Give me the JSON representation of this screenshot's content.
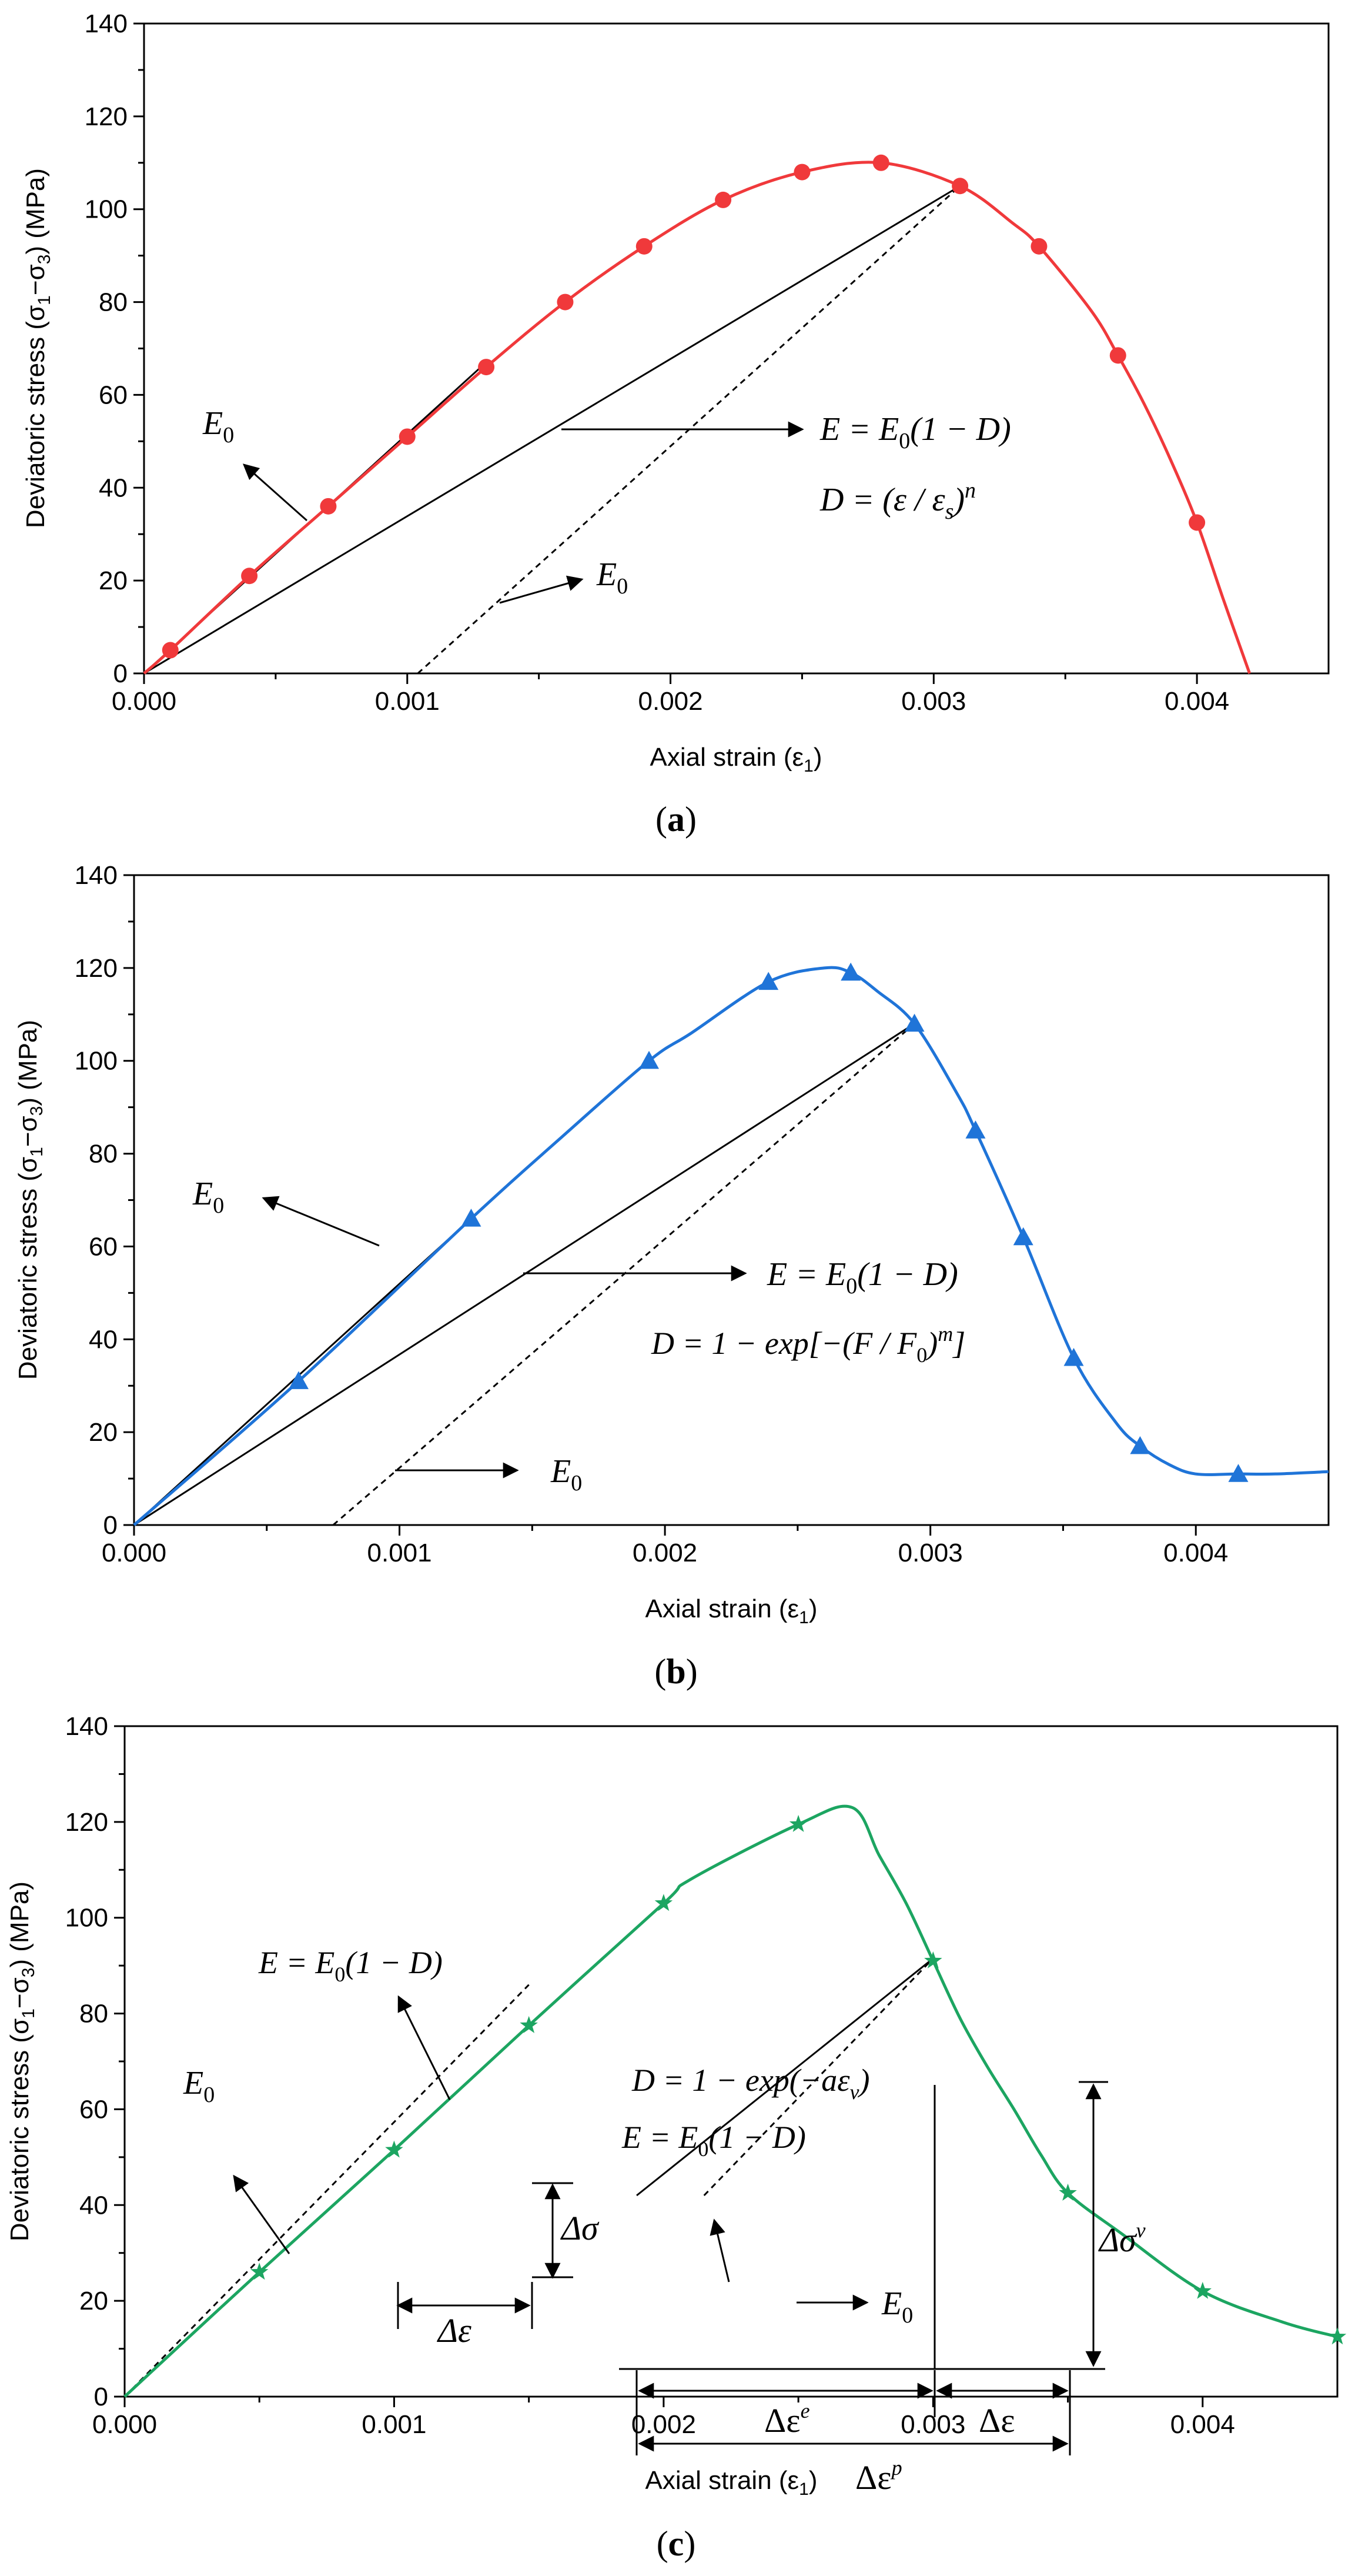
{
  "figure": {
    "panels": [
      {
        "id": "a",
        "label_prefix": "(",
        "label": "a",
        "label_suffix": ")",
        "color": "#F0393B",
        "marker": "circle",
        "annotations": {
          "e0_left": "E",
          "e0_left_sub": "0",
          "e0_bottom": "E",
          "e0_bottom_sub": "0",
          "eq_e_lhs": "E = E",
          "eq_e_sub": "0",
          "eq_e_rhs": "(1 − D)",
          "eq_d": "D = (ε / ε",
          "eq_d_sub": "s",
          "eq_d_close": ")",
          "eq_d_sup": "n"
        }
      },
      {
        "id": "b",
        "label_prefix": "(",
        "label": "b",
        "label_suffix": ")",
        "color": "#1F74D8",
        "marker": "triangle",
        "annotations": {
          "e0_left": "E",
          "e0_left_sub": "0",
          "e0_bottom": "E",
          "e0_bottom_sub": "0",
          "eq_e_lhs": "E = E",
          "eq_e_sub": "0",
          "eq_e_rhs": "(1 − D)",
          "eq_d": "D = 1 − exp[−(F / F",
          "eq_d_sub": "0",
          "eq_d_close": ")",
          "eq_d_sup": "m",
          "eq_d_end": "]"
        }
      },
      {
        "id": "c",
        "label_prefix": "(",
        "label": "c",
        "label_suffix": ")",
        "color": "#1CA561",
        "marker": "star",
        "annotations": {
          "eq_e_left_lhs": "E = E",
          "eq_e_left_sub": "0",
          "eq_e_left_rhs": "(1 − D)",
          "e0_left": "E",
          "e0_left_sub": "0",
          "d_sigma": "Δσ",
          "d_eps_left": "Δε",
          "eq_d": "D = 1 − exp(−aε",
          "eq_d_sub": "v",
          "eq_d_close": ")",
          "eq_e_right_lhs": "E = E",
          "eq_e_right_sub": "0",
          "eq_e_right_rhs": "(1 − D)",
          "e0_right": "E",
          "e0_right_sub": "0",
          "d_sigma_v": "Δσ",
          "d_sigma_v_sup": "v",
          "d_eps_e": "Δε",
          "d_eps_e_sup": "e",
          "d_eps_right": "Δε",
          "d_eps_p": "Δε",
          "d_eps_p_sup": "p"
        }
      }
    ]
  },
  "chart_data": [
    {
      "type": "line",
      "panel": "a",
      "title": "",
      "xlabel": "Axial strain (ε",
      "xlabel_sub": "1",
      "xlabel_close": ")",
      "ylabel": "Deviatoric stress (σ",
      "ylabel_sub1": "1",
      "ylabel_mid": "−σ",
      "ylabel_sub3": "3",
      "ylabel_close": ") (MPa)",
      "xlim": [
        0,
        0.0045
      ],
      "ylim": [
        0,
        140
      ],
      "xticks": [
        0.0,
        0.001,
        0.002,
        0.003,
        0.004
      ],
      "xtick_labels": [
        "0.000",
        "0.001",
        "0.002",
        "0.003",
        "0.004"
      ],
      "yticks": [
        0,
        20,
        40,
        60,
        80,
        100,
        120,
        140
      ],
      "ytick_labels": [
        "0",
        "20",
        "40",
        "60",
        "80",
        "100",
        "120",
        "140"
      ],
      "series": [
        {
          "name": "curve",
          "x": [
            0.0,
            0.0001,
            0.0004,
            0.0007,
            0.001,
            0.0013,
            0.0016,
            0.0019,
            0.0022,
            0.0025,
            0.0028,
            0.0031,
            0.0033,
            0.0034,
            0.0036,
            0.0037,
            0.0038,
            0.0039,
            0.004,
            0.0041,
            0.0042
          ],
          "y": [
            0,
            5,
            21,
            36,
            51,
            66,
            80,
            92,
            102,
            108,
            110,
            105,
            97,
            92,
            78,
            68.5,
            58,
            46,
            32.5,
            16,
            0
          ]
        },
        {
          "name": "markers",
          "x": [
            0.0001,
            0.0004,
            0.0007,
            0.001,
            0.0013,
            0.0016,
            0.0019,
            0.0022,
            0.0025,
            0.0028,
            0.0031,
            0.0034,
            0.0037,
            0.004
          ],
          "y": [
            5,
            21,
            36,
            51,
            66,
            80,
            92,
            102,
            108,
            110,
            105,
            92,
            68.5,
            32.5
          ]
        }
      ],
      "guide_lines": [
        {
          "name": "tangent-E0",
          "style": "solid",
          "x": [
            0.0,
            0.00128
          ],
          "y": [
            0,
            66
          ]
        },
        {
          "name": "secant-E",
          "style": "solid",
          "x": [
            0.0,
            0.0031
          ],
          "y": [
            0,
            105
          ]
        },
        {
          "name": "unload-E0",
          "style": "dashed",
          "x": [
            0.00104,
            0.0031
          ],
          "y": [
            0,
            105
          ]
        }
      ]
    },
    {
      "type": "line",
      "panel": "b",
      "title": "",
      "xlabel": "Axial strain (ε",
      "xlabel_sub": "1",
      "xlabel_close": ")",
      "ylabel": "Deviatoric stress (σ",
      "ylabel_sub1": "1",
      "ylabel_mid": "−σ",
      "ylabel_sub3": "3",
      "ylabel_close": ") (MPa)",
      "xlim": [
        0,
        0.0045
      ],
      "ylim": [
        0,
        140
      ],
      "xticks": [
        0.0,
        0.001,
        0.002,
        0.003,
        0.004
      ],
      "xtick_labels": [
        "0.000",
        "0.001",
        "0.002",
        "0.003",
        "0.004"
      ],
      "yticks": [
        0,
        20,
        40,
        60,
        80,
        100,
        120,
        140
      ],
      "ytick_labels": [
        "0",
        "20",
        "40",
        "60",
        "80",
        "100",
        "120",
        "140"
      ],
      "series": [
        {
          "name": "curve",
          "x": [
            0.0,
            0.00062,
            0.00127,
            0.0016,
            0.00194,
            0.0021,
            0.00239,
            0.0026,
            0.0027,
            0.0028,
            0.00294,
            0.0031,
            0.00317,
            0.00335,
            0.00354,
            0.0037,
            0.00379,
            0.0039,
            0.004,
            0.00416,
            0.0043,
            0.0045
          ],
          "y": [
            0,
            31,
            66,
            83,
            100,
            106,
            117,
            120,
            119,
            115,
            108,
            93,
            85,
            62,
            36,
            22,
            17,
            13,
            11,
            11,
            11,
            11.5
          ]
        },
        {
          "name": "markers",
          "x": [
            0.00062,
            0.00127,
            0.00194,
            0.00239,
            0.0027,
            0.00294,
            0.00317,
            0.00335,
            0.00354,
            0.00379,
            0.00416
          ],
          "y": [
            31,
            66,
            100,
            117,
            119,
            108,
            85,
            62,
            36,
            17,
            11
          ]
        }
      ],
      "guide_lines": [
        {
          "name": "tangent-E0",
          "style": "solid",
          "x": [
            0.0,
            0.00127
          ],
          "y": [
            0,
            66
          ]
        },
        {
          "name": "secant-E",
          "style": "solid",
          "x": [
            0.0,
            0.00294
          ],
          "y": [
            0,
            108
          ]
        },
        {
          "name": "unload-E0",
          "style": "dashed",
          "x": [
            0.00075,
            0.00294
          ],
          "y": [
            0,
            108
          ]
        }
      ]
    },
    {
      "type": "line",
      "panel": "c",
      "title": "",
      "xlabel": "Axial strain (ε",
      "xlabel_sub": "1",
      "xlabel_close": ")",
      "ylabel": "Deviatoric stress (σ",
      "ylabel_sub1": "1",
      "ylabel_mid": "−σ",
      "ylabel_sub3": "3",
      "ylabel_close": ") (MPa)",
      "xlim": [
        0,
        0.0045
      ],
      "ylim": [
        0,
        140
      ],
      "xticks": [
        0.0,
        0.001,
        0.002,
        0.003,
        0.004
      ],
      "xtick_labels": [
        "0.000",
        "0.001",
        "0.002",
        "0.003",
        "0.004"
      ],
      "yticks": [
        0,
        20,
        40,
        60,
        80,
        100,
        120,
        140
      ],
      "ytick_labels": [
        "0",
        "20",
        "40",
        "60",
        "80",
        "100",
        "120",
        "140"
      ],
      "series": [
        {
          "name": "curve",
          "x": [
            0.0,
            0.0005,
            0.001,
            0.0015,
            0.002,
            0.0021,
            0.0025,
            0.0027,
            0.0028,
            0.0029,
            0.003,
            0.0031,
            0.0032,
            0.0033,
            0.0034,
            0.0035,
            0.0037,
            0.004,
            0.0043,
            0.0045
          ],
          "y": [
            0,
            26,
            51.5,
            77.5,
            103,
            108,
            119.5,
            123,
            113,
            103,
            91,
            79,
            69,
            60,
            50.5,
            42.5,
            34,
            22,
            15.5,
            12.5
          ]
        },
        {
          "name": "markers",
          "x": [
            0.0005,
            0.001,
            0.0015,
            0.002,
            0.0025,
            0.003,
            0.0035,
            0.004,
            0.0045
          ],
          "y": [
            26,
            51.5,
            77.5,
            103,
            119.5,
            91,
            42.5,
            22,
            12.5
          ]
        }
      ],
      "guide_lines": [
        {
          "name": "tangent-E0-upper",
          "style": "dashed",
          "x": [
            0.0,
            0.0015
          ],
          "y": [
            0,
            86
          ]
        },
        {
          "name": "secant-E-lower",
          "style": "solid",
          "x": [
            0.0019,
            0.003
          ],
          "y": [
            42,
            91.5
          ]
        },
        {
          "name": "unload-E0-lower",
          "style": "dashed",
          "x": [
            0.00215,
            0.003
          ],
          "y": [
            42,
            91.5
          ]
        }
      ]
    }
  ]
}
